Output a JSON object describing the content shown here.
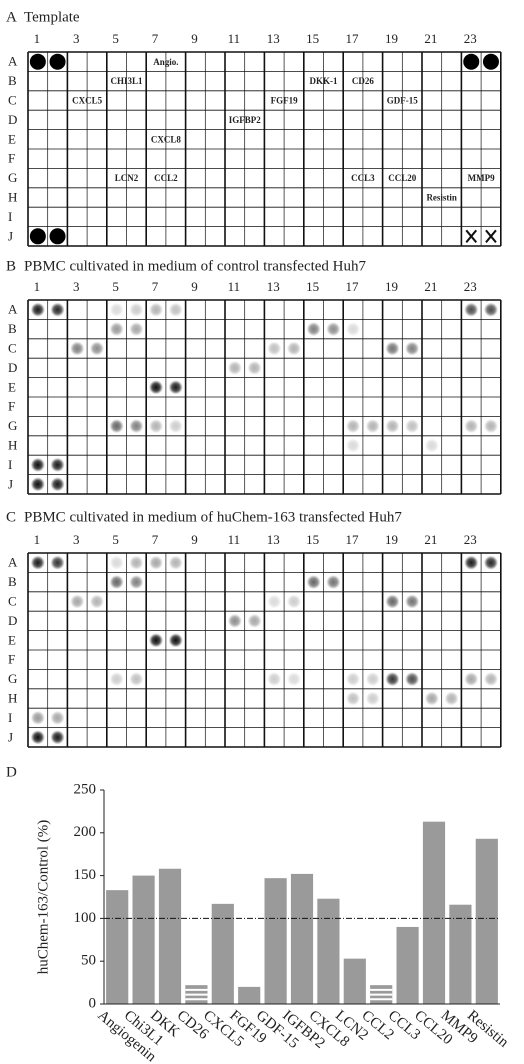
{
  "panels": [
    {
      "label": "A",
      "title": "Template",
      "column_labels": [
        1,
        3,
        5,
        7,
        9,
        11,
        13,
        15,
        17,
        19,
        21,
        23
      ],
      "row_labels": [
        "A",
        "B",
        "C",
        "D",
        "E",
        "F",
        "G",
        "H",
        "I",
        "J"
      ],
      "cells": [
        {
          "text": "Angio.",
          "row": 0,
          "col": 6
        },
        {
          "text": "CHI3L1",
          "row": 1,
          "col": 4
        },
        {
          "text": "DKK-1",
          "row": 1,
          "col": 14
        },
        {
          "text": "CD26",
          "row": 1,
          "col": 16
        },
        {
          "text": "CXCL5",
          "row": 2,
          "col": 2
        },
        {
          "text": "FGF19",
          "row": 2,
          "col": 12
        },
        {
          "text": "GDF-15",
          "row": 2,
          "col": 18
        },
        {
          "text": "IGFBP2",
          "row": 3,
          "col": 10
        },
        {
          "text": "CXCL8",
          "row": 4,
          "col": 6
        },
        {
          "text": "LCN2",
          "row": 6,
          "col": 4
        },
        {
          "text": "CCL2",
          "row": 6,
          "col": 6
        },
        {
          "text": "CCL3",
          "row": 6,
          "col": 16
        },
        {
          "text": "CCL20",
          "row": 6,
          "col": 18
        },
        {
          "text": "MMP9",
          "row": 6,
          "col": 22
        },
        {
          "text": "Resistin",
          "row": 7,
          "col": 20
        }
      ],
      "markers": [
        {
          "row": 0,
          "col": 0,
          "shape": "dot"
        },
        {
          "row": 0,
          "col": 1,
          "shape": "dot"
        },
        {
          "row": 0,
          "col": 22,
          "shape": "dot"
        },
        {
          "row": 0,
          "col": 23,
          "shape": "dot"
        },
        {
          "row": 9,
          "col": 0,
          "shape": "dot"
        },
        {
          "row": 9,
          "col": 1,
          "shape": "dot"
        },
        {
          "row": 9,
          "col": 22,
          "shape": "cross"
        },
        {
          "row": 9,
          "col": 23,
          "shape": "cross"
        }
      ]
    },
    {
      "label": "B",
      "title": "PBMC cultivated in medium of control transfected Huh7",
      "column_labels": [
        1,
        3,
        5,
        7,
        9,
        11,
        13,
        15,
        17,
        19,
        21,
        23
      ],
      "row_labels": [
        "A",
        "B",
        "C",
        "D",
        "E",
        "F",
        "G",
        "H",
        "I",
        "J"
      ],
      "spots": [
        [
          0,
          0,
          0.9
        ],
        [
          0,
          1,
          0.85
        ],
        [
          0,
          4,
          0.15
        ],
        [
          0,
          5,
          0.2
        ],
        [
          0,
          6,
          0.3
        ],
        [
          0,
          7,
          0.25
        ],
        [
          0,
          22,
          0.7
        ],
        [
          0,
          23,
          0.7
        ],
        [
          1,
          4,
          0.4
        ],
        [
          1,
          5,
          0.35
        ],
        [
          1,
          14,
          0.5
        ],
        [
          1,
          15,
          0.45
        ],
        [
          1,
          16,
          0.15
        ],
        [
          2,
          2,
          0.5
        ],
        [
          2,
          3,
          0.45
        ],
        [
          2,
          12,
          0.25
        ],
        [
          2,
          13,
          0.3
        ],
        [
          2,
          18,
          0.55
        ],
        [
          2,
          19,
          0.5
        ],
        [
          3,
          10,
          0.3
        ],
        [
          3,
          11,
          0.3
        ],
        [
          4,
          6,
          0.95
        ],
        [
          4,
          7,
          0.9
        ],
        [
          6,
          4,
          0.6
        ],
        [
          6,
          5,
          0.5
        ],
        [
          6,
          6,
          0.3
        ],
        [
          6,
          7,
          0.2
        ],
        [
          6,
          16,
          0.3
        ],
        [
          6,
          17,
          0.3
        ],
        [
          6,
          18,
          0.3
        ],
        [
          6,
          19,
          0.25
        ],
        [
          6,
          22,
          0.3
        ],
        [
          6,
          23,
          0.3
        ],
        [
          7,
          16,
          0.15
        ],
        [
          7,
          20,
          0.15
        ],
        [
          8,
          0,
          0.95
        ],
        [
          8,
          1,
          0.9
        ],
        [
          9,
          0,
          0.95
        ],
        [
          9,
          1,
          0.9
        ]
      ]
    },
    {
      "label": "C",
      "title": "PBMC cultivated in medium of huChem-163 transfected Huh7",
      "column_labels": [
        1,
        3,
        5,
        7,
        9,
        11,
        13,
        15,
        17,
        19,
        21,
        23
      ],
      "row_labels": [
        "A",
        "B",
        "C",
        "D",
        "E",
        "F",
        "G",
        "H",
        "I",
        "J"
      ],
      "spots": [
        [
          0,
          0,
          0.9
        ],
        [
          0,
          1,
          0.8
        ],
        [
          0,
          4,
          0.15
        ],
        [
          0,
          5,
          0.3
        ],
        [
          0,
          6,
          0.35
        ],
        [
          0,
          7,
          0.3
        ],
        [
          0,
          22,
          0.9
        ],
        [
          0,
          23,
          0.85
        ],
        [
          1,
          4,
          0.6
        ],
        [
          1,
          5,
          0.5
        ],
        [
          1,
          14,
          0.6
        ],
        [
          1,
          15,
          0.55
        ],
        [
          2,
          2,
          0.35
        ],
        [
          2,
          3,
          0.3
        ],
        [
          2,
          12,
          0.15
        ],
        [
          2,
          13,
          0.2
        ],
        [
          2,
          18,
          0.6
        ],
        [
          2,
          19,
          0.55
        ],
        [
          3,
          10,
          0.45
        ],
        [
          3,
          11,
          0.35
        ],
        [
          4,
          6,
          0.95
        ],
        [
          4,
          7,
          0.95
        ],
        [
          6,
          4,
          0.2
        ],
        [
          6,
          5,
          0.25
        ],
        [
          6,
          12,
          0.2
        ],
        [
          6,
          13,
          0.15
        ],
        [
          6,
          16,
          0.2
        ],
        [
          6,
          17,
          0.2
        ],
        [
          6,
          18,
          0.8
        ],
        [
          6,
          19,
          0.7
        ],
        [
          6,
          22,
          0.35
        ],
        [
          6,
          23,
          0.3
        ],
        [
          7,
          16,
          0.25
        ],
        [
          7,
          17,
          0.2
        ],
        [
          7,
          20,
          0.35
        ],
        [
          7,
          21,
          0.3
        ],
        [
          8,
          0,
          0.4
        ],
        [
          8,
          1,
          0.35
        ],
        [
          9,
          0,
          0.95
        ],
        [
          9,
          1,
          0.9
        ]
      ]
    }
  ],
  "chart_data": {
    "type": "bar",
    "label": "D",
    "ylabel": "huChem-163/Control (%)",
    "categories": [
      "Angiogenin",
      "Chi3L1",
      "DKK",
      "CD26",
      "CXCL5",
      "FGF19",
      "GDF-15",
      "IGFBP2",
      "CXCL8",
      "LCN2",
      "CCL2",
      "CCL3",
      "CCL20",
      "MMP9",
      "Resistin"
    ],
    "values": [
      133,
      150,
      158,
      22,
      117,
      20,
      147,
      152,
      123,
      53,
      22,
      90,
      213,
      116,
      193
    ],
    "hatched": [
      false,
      false,
      false,
      true,
      false,
      false,
      false,
      false,
      false,
      false,
      true,
      false,
      false,
      false,
      false
    ],
    "color": "#9a9a9a",
    "ylim": [
      0,
      250
    ],
    "yticks": [
      0,
      50,
      100,
      150,
      200,
      250
    ],
    "reference_line": 100
  }
}
